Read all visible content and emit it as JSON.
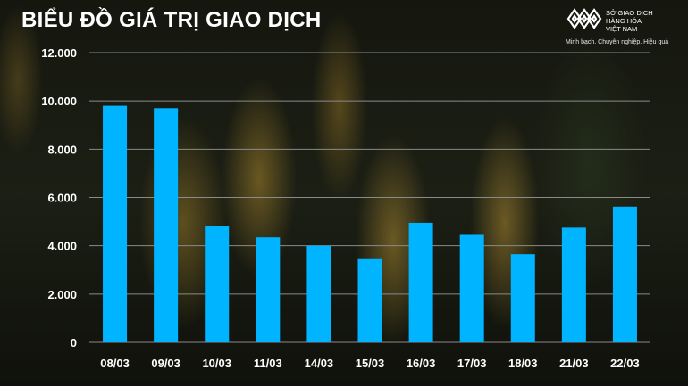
{
  "header": {
    "title": "BIỂU ĐỒ GIÁ TRỊ GIAO DỊCH"
  },
  "logo": {
    "name_lines": [
      "SỞ GIAO DỊCH",
      "HÀNG HÓA",
      "VIỆT NAM"
    ],
    "slogan": "Minh bạch. Chuyên nghiệp. Hiệu quả"
  },
  "colors": {
    "bar": "#00b4ff",
    "gridline": "#8a8a8a",
    "text": "#ffffff"
  },
  "chart_data": {
    "type": "bar",
    "title": "BIỂU ĐỒ GIÁ TRỊ GIAO DỊCH",
    "xlabel": "",
    "ylabel": "",
    "categories": [
      "08/03",
      "09/03",
      "10/03",
      "11/03",
      "14/03",
      "15/03",
      "16/03",
      "17/03",
      "18/03",
      "21/03",
      "22/03"
    ],
    "values": [
      9800,
      9700,
      4800,
      4350,
      4000,
      3480,
      4950,
      4450,
      3650,
      4750,
      5620
    ],
    "ylim": [
      0,
      12000
    ],
    "yticks": [
      0,
      2000,
      4000,
      6000,
      8000,
      10000,
      12000
    ],
    "ytick_labels": [
      "0",
      "2.000",
      "4.000",
      "6.000",
      "8.000",
      "10.000",
      "12.000"
    ],
    "grid": true,
    "legend": "none"
  }
}
